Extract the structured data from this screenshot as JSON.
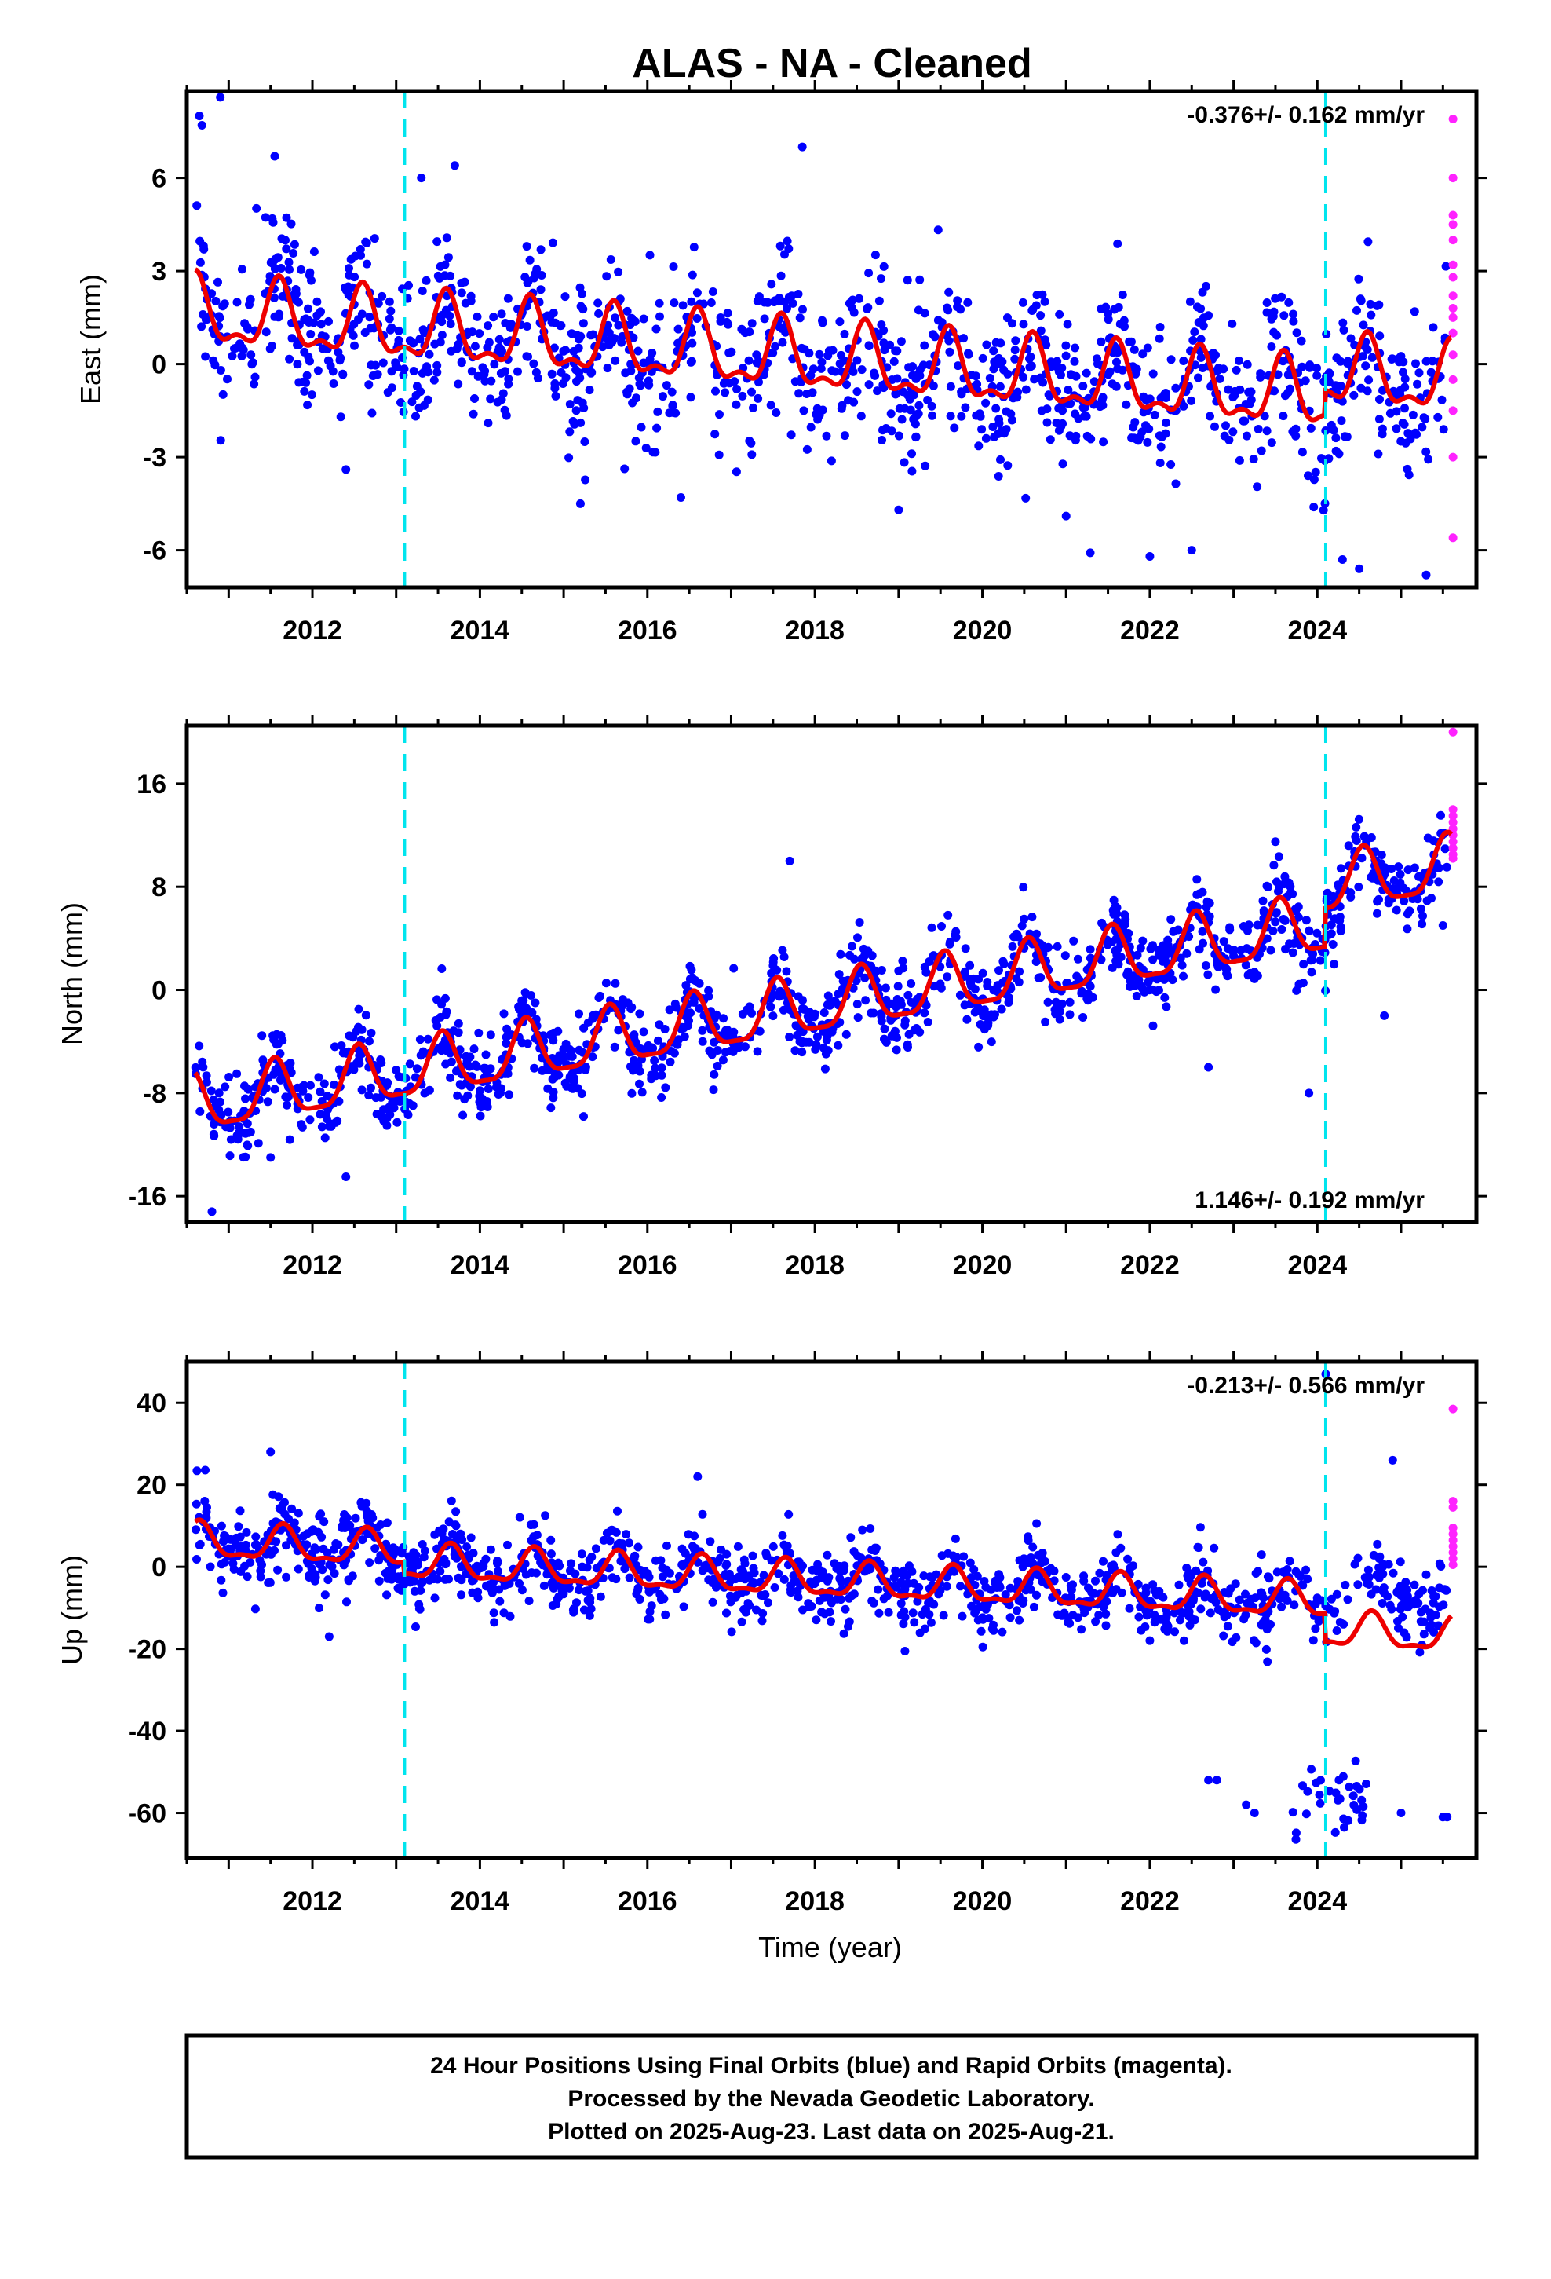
{
  "title": "ALAS  - NA - Cleaned",
  "footer": {
    "line1": "24 Hour Positions Using Final Orbits (blue) and Rapid Orbits (magenta).",
    "line2": "Processed by the Nevada Geodetic Laboratory.",
    "line3": "Plotted on 2025-Aug-23. Last data on 2025-Aug-21."
  },
  "colors": {
    "final_orbits": "#0000ff",
    "rapid_orbits": "#ff22ff",
    "model_fit": "#ee0000",
    "equipment_change": "#00e5ee"
  },
  "chart_data": [
    {
      "type": "scatter",
      "panel": "east",
      "xlabel": "",
      "ylabel": "East (mm)",
      "xlim": [
        2010.5,
        2025.9
      ],
      "ylim": [
        -7.2,
        8.8
      ],
      "xticks": [
        2012,
        2014,
        2016,
        2018,
        2020,
        2022,
        2024
      ],
      "yticks": [
        -6,
        -3,
        0,
        3,
        6
      ],
      "rate_text": "-0.376+/- 0.162 mm/yr",
      "rate_position": "top-right",
      "grid": false,
      "equipment_changes": [
        2013.1,
        2024.1
      ],
      "model": {
        "start": 2010.6,
        "end": 2025.6,
        "trend_start_value": 1.6,
        "trend_end_value": -1.4,
        "annual_amplitude": 1.0,
        "annual_phase_peak": 0.6,
        "semiannual_amplitude": 0.45,
        "steps": [
          {
            "at": 2024.1,
            "offset": 0.8
          }
        ]
      },
      "series": [
        {
          "name": "Final Orbits (blue)",
          "scatter_sd": 1.2,
          "range": [
            2010.6,
            2025.55
          ],
          "outliers": [
            [
              2010.65,
              8.0
            ],
            [
              2010.68,
              7.7
            ],
            [
              2010.9,
              8.6
            ],
            [
              2011.55,
              6.7
            ],
            [
              2013.3,
              6.0
            ],
            [
              2013.7,
              6.4
            ],
            [
              2017.85,
              7.0
            ],
            [
              2024.5,
              -6.6
            ],
            [
              2024.3,
              -6.3
            ],
            [
              2022.0,
              -6.2
            ],
            [
              2022.5,
              -6.0
            ],
            [
              2015.2,
              -4.5
            ],
            [
              2016.4,
              -4.3
            ],
            [
              2019.0,
              -4.7
            ],
            [
              2021.0,
              -4.9
            ],
            [
              2025.3,
              -6.8
            ],
            [
              2012.4,
              -3.4
            ]
          ]
        },
        {
          "name": "Rapid Orbits (magenta)",
          "points": [
            [
              2025.62,
              7.9
            ],
            [
              2025.62,
              6.0
            ],
            [
              2025.62,
              4.8
            ],
            [
              2025.62,
              4.5
            ],
            [
              2025.62,
              4.0
            ],
            [
              2025.62,
              3.2
            ],
            [
              2025.62,
              2.8
            ],
            [
              2025.62,
              2.2
            ],
            [
              2025.62,
              1.8
            ],
            [
              2025.62,
              1.5
            ],
            [
              2025.62,
              1.0
            ],
            [
              2025.62,
              0.3
            ],
            [
              2025.62,
              -0.5
            ],
            [
              2025.62,
              -1.5
            ],
            [
              2025.62,
              -3.0
            ],
            [
              2025.62,
              -5.6
            ]
          ]
        }
      ]
    },
    {
      "type": "scatter",
      "panel": "north",
      "xlabel": "",
      "ylabel": "North (mm)",
      "xlim": [
        2010.5,
        2025.9
      ],
      "ylim": [
        -18,
        20.5
      ],
      "xticks": [
        2012,
        2014,
        2016,
        2018,
        2020,
        2022,
        2024
      ],
      "yticks": [
        -16,
        -8,
        0,
        8,
        16
      ],
      "rate_text": "1.146+/- 0.192 mm/yr",
      "rate_position": "bottom-right",
      "grid": false,
      "equipment_changes": [
        2013.1,
        2024.1
      ],
      "model": {
        "start": 2010.6,
        "end": 2025.6,
        "trend_start_value": -9.0,
        "trend_end_value": 6.5,
        "annual_amplitude": 2.2,
        "annual_phase_peak": 0.55,
        "semiannual_amplitude": 0.6,
        "steps": [
          {
            "at": 2024.1,
            "offset": 3.0
          }
        ]
      },
      "series": [
        {
          "name": "Final Orbits (blue)",
          "scatter_sd": 1.5,
          "range": [
            2010.6,
            2025.55
          ],
          "outliers": [
            [
              2010.8,
              -17.2
            ],
            [
              2012.4,
              -14.5
            ],
            [
              2011.5,
              -13.0
            ],
            [
              2023.9,
              -8.0
            ],
            [
              2024.8,
              -2.0
            ],
            [
              2025.5,
              5.0
            ],
            [
              2022.7,
              -6.0
            ],
            [
              2023.5,
              11.5
            ],
            [
              2017.7,
              10.0
            ],
            [
              2024.2,
              2.0
            ]
          ]
        },
        {
          "name": "Rapid Orbits (magenta)",
          "points": [
            [
              2025.62,
              20.0
            ],
            [
              2025.62,
              14.0
            ],
            [
              2025.62,
              13.5
            ],
            [
              2025.62,
              13.0
            ],
            [
              2025.62,
              12.5
            ],
            [
              2025.62,
              12.0
            ],
            [
              2025.62,
              11.5
            ],
            [
              2025.62,
              11.0
            ],
            [
              2025.62,
              10.5
            ],
            [
              2025.62,
              10.2
            ]
          ]
        }
      ]
    },
    {
      "type": "scatter",
      "panel": "up",
      "xlabel": "Time (year)",
      "ylabel": "Up (mm)",
      "xlim": [
        2010.5,
        2025.9
      ],
      "ylim": [
        -71,
        50
      ],
      "xticks": [
        2012,
        2014,
        2016,
        2018,
        2020,
        2022,
        2024
      ],
      "yticks": [
        -60,
        -40,
        -20,
        0,
        20,
        40
      ],
      "rate_text": "-0.213+/- 0.566 mm/yr",
      "rate_position": "top-right",
      "grid": false,
      "equipment_changes": [
        2013.1,
        2024.1
      ],
      "model": {
        "start": 2010.6,
        "end": 2025.6,
        "trend_start_value": 6.0,
        "trend_end_value": -7.0,
        "annual_amplitude": 4.0,
        "annual_phase_peak": 0.65,
        "semiannual_amplitude": 1.5,
        "steps": [
          {
            "at": 2013.1,
            "offset": -3.0
          },
          {
            "at": 2024.1,
            "offset": -7.0
          }
        ]
      },
      "series": [
        {
          "name": "Final Orbits (blue)",
          "scatter_sd": 4.5,
          "range": [
            2010.6,
            2025.55
          ],
          "anomalous_cluster": {
            "range": [
              2023.7,
              2024.6
            ],
            "center": -57,
            "sd": 5
          },
          "outliers": [
            [
              2022.7,
              -52
            ],
            [
              2022.8,
              -52
            ],
            [
              2023.15,
              -58
            ],
            [
              2023.25,
              -60
            ],
            [
              2025.0,
              -60
            ],
            [
              2025.5,
              -61
            ],
            [
              2025.55,
              -61
            ],
            [
              2024.1,
              47
            ],
            [
              2024.9,
              26
            ],
            [
              2011.5,
              28
            ],
            [
              2012.2,
              -17
            ],
            [
              2022.0,
              -18
            ],
            [
              2016.6,
              22
            ]
          ]
        },
        {
          "name": "Rapid Orbits (magenta)",
          "points": [
            [
              2025.62,
              38.5
            ],
            [
              2025.62,
              16.0
            ],
            [
              2025.62,
              14.5
            ],
            [
              2025.62,
              9.5
            ],
            [
              2025.62,
              8.0
            ],
            [
              2025.62,
              6.5
            ],
            [
              2025.62,
              5.0
            ],
            [
              2025.62,
              3.5
            ],
            [
              2025.62,
              2.0
            ],
            [
              2025.62,
              0.5
            ]
          ]
        }
      ]
    }
  ]
}
